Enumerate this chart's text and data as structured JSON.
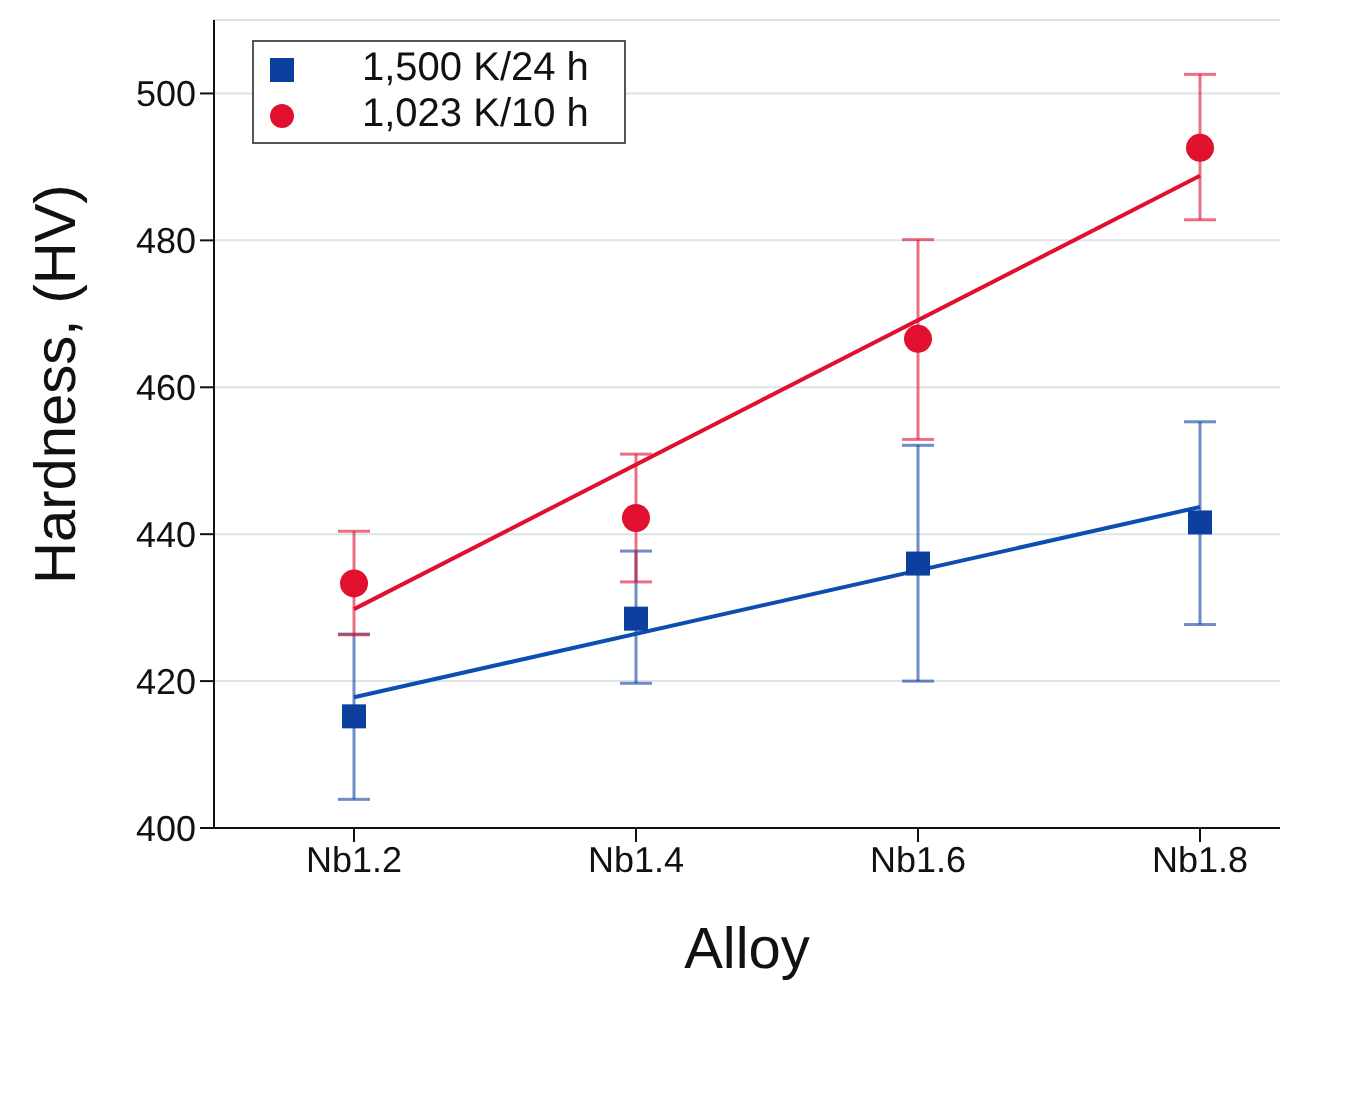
{
  "chart_data": {
    "type": "scatter",
    "xlabel": "Alloy",
    "ylabel": "Hardness, (HV)",
    "categories": [
      "Nb1.2",
      "Nb1.4",
      "Nb1.6",
      "Nb1.8"
    ],
    "series": [
      {
        "name": "1,500 K/24 h",
        "color": "#0d3f9e",
        "marker": "square",
        "values": [
          415.2,
          428.5,
          436.0,
          441.6
        ],
        "errors": [
          [
            403.9,
            426.4
          ],
          [
            419.7,
            437.7
          ],
          [
            420.0,
            452.1
          ],
          [
            427.7,
            455.3
          ]
        ]
      },
      {
        "name": "1,023 K/10 h",
        "color": "#e0102e",
        "marker": "circle",
        "values": [
          433.3,
          442.2,
          466.6,
          492.6
        ],
        "errors": [
          [
            426.3,
            440.4
          ],
          [
            433.5,
            450.9
          ],
          [
            452.9,
            480.1
          ],
          [
            482.8,
            502.6
          ]
        ]
      },
      {
        "type": "line",
        "color": "#0d4fb0",
        "x": [
          "Nb1.2",
          "Nb1.8"
        ],
        "values": [
          417.8,
          443.7
        ]
      },
      {
        "type": "line",
        "color": "#e0102e",
        "x": [
          "Nb1.2",
          "Nb1.8"
        ],
        "values": [
          429.8,
          488.8
        ]
      }
    ],
    "ylim": [
      400,
      510
    ],
    "yticks": [
      400,
      420,
      440,
      460,
      480,
      500
    ],
    "grid": "y",
    "legend": "top left"
  }
}
